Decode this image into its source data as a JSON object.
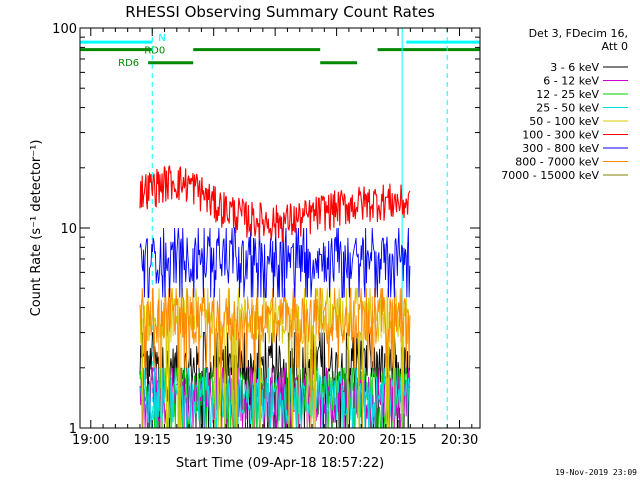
{
  "title": "RHESSI Observing Summary Count Rates",
  "xlabel": "Start Time (09-Apr-18 18:57:22)",
  "ylabel": "Count Rate (s⁻¹ detector⁻¹)",
  "timestamp": "19-Nov-2019 23:09",
  "legend": {
    "header_line1": "Det 3, FDecim 16,",
    "header_line2": "Att 0"
  },
  "chart_data": {
    "type": "line",
    "title": "RHESSI Observing Summary Count Rates",
    "xlabel": "Start Time (09-Apr-18 18:57:22)",
    "ylabel": "Count Rate (s⁻¹ detector⁻¹)",
    "y_scale": "log",
    "ylim": [
      1,
      100
    ],
    "xlim": [
      "18:57:22",
      "20:35:00"
    ],
    "x_ticks": [
      "19:00",
      "19:15",
      "19:30",
      "19:45",
      "20:00",
      "20:15",
      "20:30"
    ],
    "y_ticks": [
      "1",
      "10",
      "100"
    ],
    "data_range": [
      "19:12",
      "20:18"
    ],
    "series": [
      {
        "name": "3 - 6 keV",
        "color": "#000000",
        "baseline": 2.0,
        "min": 1.0,
        "max": 3.0
      },
      {
        "name": "6 - 12 keV",
        "color": "#cc00cc",
        "baseline": 1.4,
        "min": 1.0,
        "max": 2.0
      },
      {
        "name": "12 - 25 keV",
        "color": "#00cc00",
        "baseline": 1.5,
        "min": 1.0,
        "max": 2.0
      },
      {
        "name": "25 - 50 keV",
        "color": "#00dddd",
        "baseline": 1.4,
        "min": 1.0,
        "max": 2.0
      },
      {
        "name": "50 - 100 keV",
        "color": "#d8c800",
        "baseline": 3.5,
        "min": 1.0,
        "max": 5.0
      },
      {
        "name": "100 - 300 keV",
        "color": "#ff0000",
        "profile": [
          [
            "19:12",
            15
          ],
          [
            "19:20",
            17
          ],
          [
            "19:25",
            16
          ],
          [
            "19:30",
            13
          ],
          [
            "19:38",
            11
          ],
          [
            "19:45",
            10.5
          ],
          [
            "19:52",
            11
          ],
          [
            "19:57",
            12
          ],
          [
            "20:05",
            13
          ],
          [
            "20:12",
            13.5
          ],
          [
            "20:18",
            13
          ]
        ]
      },
      {
        "name": "300 - 800 keV",
        "color": "#0000ff",
        "baseline": 7.0,
        "min": 4.5,
        "max": 10.0
      },
      {
        "name": "800 - 7000 keV",
        "color": "#ff8800",
        "baseline": 3.5,
        "min": 2.0,
        "max": 5.0
      },
      {
        "name": "7000 - 15000 keV",
        "color": "#808000",
        "baseline": 1.0,
        "min": 1.0,
        "max": 1.0
      }
    ],
    "flag_bars": [
      {
        "label": "N",
        "color": "#00ffff",
        "level": 85,
        "intervals": [
          [
            "18:57:22",
            "19:15"
          ],
          [
            "20:17",
            "20:35"
          ]
        ]
      },
      {
        "label": "RD0",
        "color": "#008800",
        "level": 78,
        "intervals": [
          [
            "18:57:22",
            "19:15"
          ],
          [
            "19:25",
            "19:56"
          ],
          [
            "20:10",
            "20:35"
          ]
        ]
      },
      {
        "label": "RD6",
        "color": "#008800",
        "level": 67,
        "intervals": [
          [
            "19:14",
            "19:25"
          ],
          [
            "19:56",
            "20:05"
          ]
        ]
      }
    ],
    "vertical_lines": [
      {
        "time": "18:57:22",
        "color": "#00ffff",
        "style": "solid"
      },
      {
        "time": "19:15",
        "color": "#00ffff",
        "style": "dashed"
      },
      {
        "time": "20:16",
        "color": "#00ffff",
        "style": "solid"
      },
      {
        "time": "20:27",
        "color": "#00ffff",
        "style": "dashed"
      }
    ]
  }
}
